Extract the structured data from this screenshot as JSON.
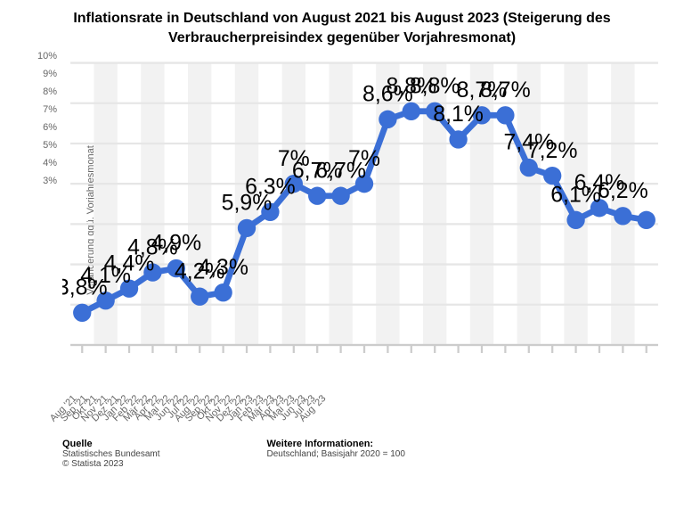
{
  "title": "Inflationsrate in Deutschland von August 2021 bis August 2023 (Steigerung des Verbraucherpreisindex gegenüber Vorjahresmonat)",
  "title_fontsize": 16,
  "chart": {
    "type": "line",
    "background_color": "#ffffff",
    "alt_band_color": "#f2f2f2",
    "gridline_color": "#e6e6e6",
    "axis_line_color": "#cccccc",
    "line_color": "#3b6fd6",
    "line_width": 3,
    "marker_color": "#3b6fd6",
    "marker_radius": 4.5,
    "label_fontsize": 11,
    "label_color": "#000000",
    "tick_label_color": "#666666",
    "tick_fontsize": 11,
    "y_axis_title": "Veränderung ggü. Vorjahresmonat",
    "ylim": [
      3,
      10
    ],
    "ytick_step": 1,
    "y_tick_suffix": "%",
    "categories": [
      "Aug '21",
      "Sep '21",
      "Okt '21",
      "Nov '21",
      "Dez '21",
      "Jan '22",
      "Feb '22",
      "Mär '22",
      "Apr '22",
      "Mai '22",
      "Jun '22",
      "Jul '22",
      "Aug '22",
      "Sep '22",
      "Okt '22",
      "Nov '22",
      "Dez '22",
      "Jan '23",
      "Feb '23",
      "Mär '23",
      "Apr '23",
      "Mai '23",
      "Jun '23",
      "Jul '23",
      "Aug '23"
    ],
    "values": [
      3.8,
      4.1,
      4.4,
      4.8,
      4.9,
      4.2,
      4.3,
      5.9,
      6.3,
      7.0,
      6.7,
      6.7,
      7.0,
      8.6,
      8.8,
      8.8,
      8.1,
      8.7,
      8.7,
      7.4,
      7.2,
      6.1,
      6.4,
      6.2,
      6.1
    ],
    "value_labels": [
      "3,8%",
      "4,1%",
      "4,4%",
      "4,8%",
      "4,9%",
      "4,2%",
      "4,3%",
      "5,9%",
      "6,3%",
      "7%",
      "6,7%",
      "6,7%",
      "7%",
      "8,6%",
      "8,8%",
      "8,8%",
      "8,1%",
      "8,7%",
      "8,7%",
      "7,4%",
      "7,2%",
      "6,1%",
      "6,4%",
      "6,2%",
      ""
    ]
  },
  "footer": {
    "source_heading": "Quelle",
    "source_line1": "Statistisches Bundesamt",
    "source_line2": "© Statista 2023",
    "info_heading": "Weitere Informationen:",
    "info_line1": "Deutschland; Basisjahr 2020 = 100"
  }
}
